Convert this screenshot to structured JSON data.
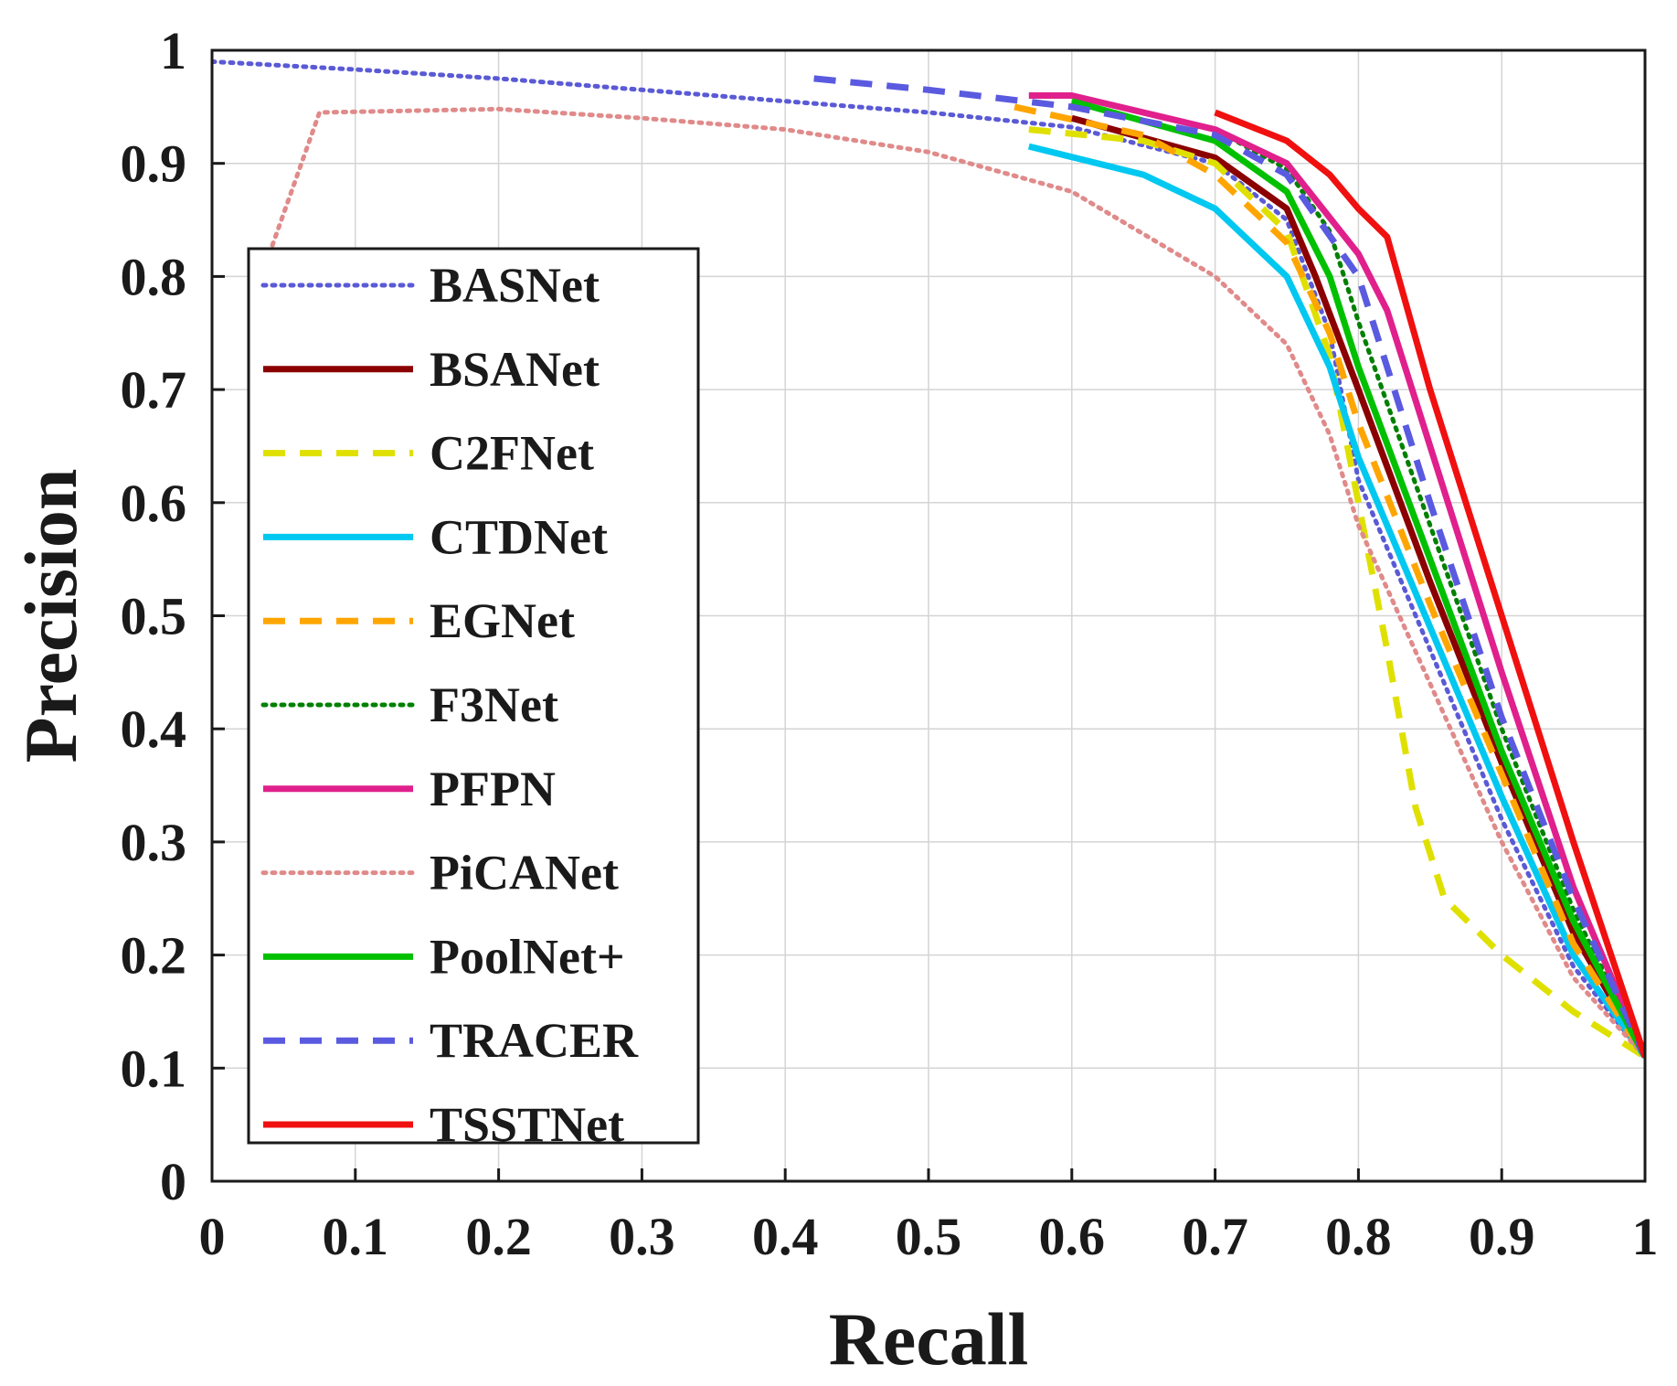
{
  "chart_data": {
    "type": "line",
    "title": "",
    "xlabel": "Recall",
    "ylabel": "Precision",
    "xlim": [
      0,
      1
    ],
    "ylim": [
      0,
      1
    ],
    "grid": true,
    "legend_position": "left",
    "x_ticks": [
      "0",
      "0.1",
      "0.2",
      "0.3",
      "0.4",
      "0.5",
      "0.6",
      "0.7",
      "0.8",
      "0.9",
      "1"
    ],
    "y_ticks": [
      "0",
      "0.1",
      "0.2",
      "0.3",
      "0.4",
      "0.5",
      "0.6",
      "0.7",
      "0.8",
      "0.9",
      "1"
    ],
    "series": [
      {
        "name": "BASNet",
        "color": "#5a5ad6",
        "style": "dotted",
        "points": [
          [
            0,
            0.99
          ],
          [
            0.1,
            0.983
          ],
          [
            0.2,
            0.975
          ],
          [
            0.3,
            0.965
          ],
          [
            0.4,
            0.955
          ],
          [
            0.5,
            0.945
          ],
          [
            0.6,
            0.932
          ],
          [
            0.7,
            0.9
          ],
          [
            0.75,
            0.85
          ],
          [
            0.78,
            0.75
          ],
          [
            0.8,
            0.62
          ],
          [
            0.85,
            0.47
          ],
          [
            0.9,
            0.32
          ],
          [
            0.95,
            0.19
          ],
          [
            1,
            0.11
          ]
        ]
      },
      {
        "name": "BSANet",
        "color": "#8b0000",
        "style": "solid",
        "points": [
          [
            0.6,
            0.94
          ],
          [
            0.7,
            0.905
          ],
          [
            0.75,
            0.86
          ],
          [
            0.77,
            0.8
          ],
          [
            0.8,
            0.7
          ],
          [
            0.85,
            0.53
          ],
          [
            0.9,
            0.37
          ],
          [
            0.95,
            0.22
          ],
          [
            1,
            0.11
          ]
        ]
      },
      {
        "name": "C2FNet",
        "color": "#e0e000",
        "style": "dashed",
        "points": [
          [
            0.57,
            0.93
          ],
          [
            0.65,
            0.92
          ],
          [
            0.7,
            0.9
          ],
          [
            0.75,
            0.84
          ],
          [
            0.78,
            0.73
          ],
          [
            0.8,
            0.6
          ],
          [
            0.82,
            0.47
          ],
          [
            0.84,
            0.33
          ],
          [
            0.86,
            0.25
          ],
          [
            0.9,
            0.2
          ],
          [
            0.95,
            0.15
          ],
          [
            1,
            0.11
          ]
        ]
      },
      {
        "name": "CTDNet",
        "color": "#00c8f0",
        "style": "solid",
        "points": [
          [
            0.57,
            0.915
          ],
          [
            0.65,
            0.89
          ],
          [
            0.7,
            0.86
          ],
          [
            0.75,
            0.8
          ],
          [
            0.78,
            0.72
          ],
          [
            0.8,
            0.64
          ],
          [
            0.85,
            0.49
          ],
          [
            0.9,
            0.34
          ],
          [
            0.95,
            0.2
          ],
          [
            1,
            0.11
          ]
        ]
      },
      {
        "name": "EGNet",
        "color": "#ffa500",
        "style": "dashed",
        "points": [
          [
            0.56,
            0.95
          ],
          [
            0.65,
            0.925
          ],
          [
            0.7,
            0.89
          ],
          [
            0.75,
            0.83
          ],
          [
            0.78,
            0.75
          ],
          [
            0.8,
            0.67
          ],
          [
            0.85,
            0.51
          ],
          [
            0.9,
            0.36
          ],
          [
            0.95,
            0.21
          ],
          [
            1,
            0.11
          ]
        ]
      },
      {
        "name": "F3Net",
        "color": "#008000",
        "style": "dotted",
        "points": [
          [
            0.6,
            0.96
          ],
          [
            0.7,
            0.93
          ],
          [
            0.75,
            0.895
          ],
          [
            0.78,
            0.84
          ],
          [
            0.8,
            0.76
          ],
          [
            0.85,
            0.58
          ],
          [
            0.9,
            0.4
          ],
          [
            0.95,
            0.24
          ],
          [
            1,
            0.11
          ]
        ]
      },
      {
        "name": "PFPN",
        "color": "#e0208c",
        "style": "solid",
        "points": [
          [
            0.57,
            0.96
          ],
          [
            0.6,
            0.96
          ],
          [
            0.7,
            0.93
          ],
          [
            0.75,
            0.9
          ],
          [
            0.8,
            0.82
          ],
          [
            0.82,
            0.77
          ],
          [
            0.85,
            0.65
          ],
          [
            0.9,
            0.45
          ],
          [
            0.95,
            0.26
          ],
          [
            1,
            0.11
          ]
        ]
      },
      {
        "name": "PiCANet",
        "color": "#e08a8a",
        "style": "dotted",
        "points": [
          [
            0.04,
            0.82
          ],
          [
            0.075,
            0.945
          ],
          [
            0.2,
            0.948
          ],
          [
            0.3,
            0.94
          ],
          [
            0.4,
            0.93
          ],
          [
            0.5,
            0.91
          ],
          [
            0.6,
            0.875
          ],
          [
            0.7,
            0.8
          ],
          [
            0.75,
            0.74
          ],
          [
            0.78,
            0.66
          ],
          [
            0.8,
            0.58
          ],
          [
            0.85,
            0.44
          ],
          [
            0.9,
            0.3
          ],
          [
            0.95,
            0.18
          ],
          [
            1,
            0.11
          ]
        ]
      },
      {
        "name": "PoolNet+",
        "color": "#00c000",
        "style": "solid",
        "points": [
          [
            0.6,
            0.955
          ],
          [
            0.7,
            0.92
          ],
          [
            0.75,
            0.875
          ],
          [
            0.78,
            0.8
          ],
          [
            0.8,
            0.72
          ],
          [
            0.85,
            0.55
          ],
          [
            0.9,
            0.38
          ],
          [
            0.95,
            0.23
          ],
          [
            1,
            0.11
          ]
        ]
      },
      {
        "name": "TRACER",
        "color": "#5a5ae0",
        "style": "dashed",
        "points": [
          [
            0.42,
            0.975
          ],
          [
            0.5,
            0.965
          ],
          [
            0.6,
            0.95
          ],
          [
            0.7,
            0.925
          ],
          [
            0.75,
            0.89
          ],
          [
            0.8,
            0.8
          ],
          [
            0.85,
            0.6
          ],
          [
            0.9,
            0.41
          ],
          [
            0.95,
            0.25
          ],
          [
            1,
            0.11
          ]
        ]
      },
      {
        "name": "TSSTNet",
        "color": "#f01010",
        "style": "solid",
        "points": [
          [
            0.7,
            0.945
          ],
          [
            0.75,
            0.92
          ],
          [
            0.78,
            0.89
          ],
          [
            0.8,
            0.86
          ],
          [
            0.82,
            0.835
          ],
          [
            0.85,
            0.7
          ],
          [
            0.9,
            0.5
          ],
          [
            0.95,
            0.3
          ],
          [
            1,
            0.11
          ]
        ]
      }
    ]
  }
}
